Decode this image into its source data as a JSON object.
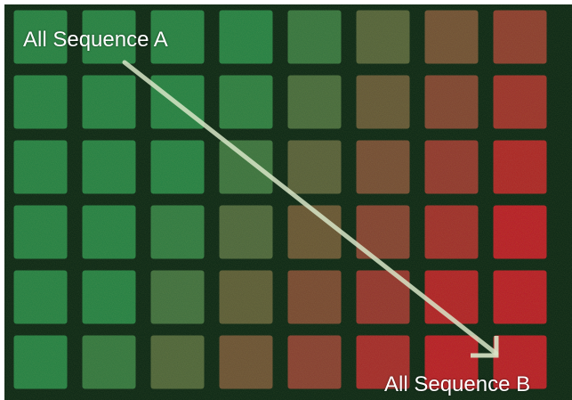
{
  "image": {
    "colors": {
      "background": "#0f2a17",
      "green_spot": "#2d8a4a",
      "red_spot": "#c4232c",
      "arrow": "#d8e6c8",
      "label_text": "#ffffff"
    }
  },
  "labels": {
    "start": "All Sequence A",
    "end": "All Sequence B"
  }
}
